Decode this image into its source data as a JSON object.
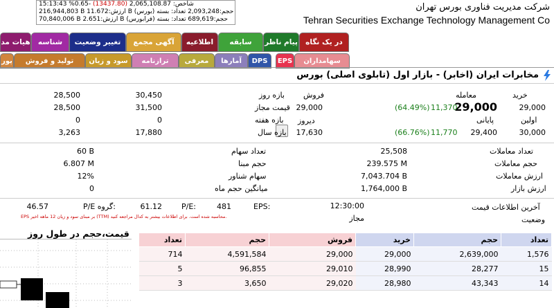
{
  "header": {
    "company_fa": "شرکت مدیریت فناوری بورس تهران",
    "company_en": "Tehran Securities Exchange Technology Management Co",
    "index": {
      "line1_time": "15:13:43",
      "line1_change": "%0.65-",
      "line1_paren": "(13437.80)",
      "line1_rest": "2,065,108.87 :شاخص",
      "line2": "216,944,803 B ارزش:11.672 B حجم:2,093,248 تعداد: بسته (بورس)",
      "line3": "70,840,006 B ارزش:2.651 B حجم:689,619 تعداد: بسته (فرابورس)"
    }
  },
  "tabs": {
    "row1": [
      {
        "label": "در یک نگاه",
        "color": "#b02121"
      },
      {
        "label": "پیام ناظر",
        "color": "#1f7a2a"
      },
      {
        "label": "سابقه",
        "color": "#3fa33a"
      },
      {
        "label": "اطلاعیه",
        "color": "#8a1c2c"
      },
      {
        "label": "آگهی مجمع",
        "color": "#d9a437"
      },
      {
        "label": "تغییر وضعیت",
        "color": "#1d2e8a"
      },
      {
        "label": "شناسه",
        "color": "#a12aa3"
      },
      {
        "label": "هیات مد",
        "color": "#8e1c6e"
      }
    ],
    "row2": [
      {
        "label": "سهامداران",
        "color": "#e78c92"
      },
      {
        "label": "EPS",
        "color": "#e7334f"
      },
      {
        "label": "DPS",
        "color": "#3055a8"
      },
      {
        "label": "آمارها",
        "color": "#8c7fbb"
      },
      {
        "label": "معرفی",
        "color": "#b8a93c"
      },
      {
        "label": "ترازنامه",
        "color": "#cf7fb3"
      },
      {
        "label": "سود و زیان",
        "color": "#c79a2b"
      },
      {
        "label": "تولید و فروش",
        "color": "#c57b2d"
      },
      {
        "label": "پور",
        "color": "#d1853d"
      }
    ]
  },
  "title": "مخابرات ایران (اخابر) - بازار اول (تابلوی اصلی) بورس",
  "prices": {
    "buy_label": "خرید",
    "buy_value": "29,000",
    "trade_label": "معامله",
    "trade_value": "29,000",
    "trade_change": "11,370",
    "trade_pct": "(64.49%)",
    "sell_label": "فروش",
    "sell_value": "29,000",
    "first_label": "اولین",
    "first_value": "30,000",
    "last_label": "پایانی",
    "last_value": "29,400",
    "last_change": "11,770",
    "last_pct": "(66.76%)",
    "yesterday_label": "دیروز",
    "yesterday_value": "17,630",
    "dayrange_label": "بازه روز",
    "dayrange_low": "28,500",
    "dayrange_high": "30,450",
    "allowed_label": "قیمت مجاز",
    "allowed_low": "28,500",
    "allowed_high": "31,500",
    "week_label": "بازه هفته",
    "week_low": "0",
    "week_high": "0",
    "year_label": "بازه سال",
    "year_low": "3,263",
    "year_high": "17,880"
  },
  "stats": {
    "trades_count_label": "تعداد معاملات",
    "trades_count": "25,508",
    "volume_label": "حجم معاملات",
    "volume": "239.575 M",
    "value_label": "ارزش معاملات",
    "value": "7,043.704 B",
    "market_label": "ارزش بازار",
    "market": "1,764,000 B",
    "shares_label": "تعداد سهام",
    "shares": "60 B",
    "base_label": "حجم مبنا",
    "base": "6.807 M",
    "float_label": "سهام شناور",
    "float": "12%",
    "avgvol_label": "میانگین حجم ماه",
    "avgvol": "0"
  },
  "info": {
    "lastinfo_label": "آخرین اطلاعات قیمت",
    "lastinfo": "12:30:00",
    "status_label": "وضعیت",
    "status": "مجاز",
    "eps_label": "EPS:",
    "eps": "481",
    "pe_label": "P/E:",
    "pe": "61.12",
    "gpe_label": "P/E گروه:",
    "gpe": "46.57",
    "eps_note": "EPS بر مبنای سود و زیان 12 ماهه اخیر (TTM) محاسبه شده است. برای اطلاعات بیشتر به کدال مراجعه کنید."
  },
  "chart_title": "قیمت،حجم در طول روز",
  "orderbook": {
    "headers": {
      "buy_count": "تعداد",
      "buy_vol": "حجم",
      "buy_price": "خرید",
      "sell_price": "فروش",
      "sell_vol": "حجم",
      "sell_count": "تعداد"
    },
    "rows": [
      {
        "buy_count": "1,576",
        "buy_vol": "2,639,000",
        "buy_price": "29,000",
        "sell_price": "29,000",
        "sell_vol": "4,591,584",
        "sell_count": "714"
      },
      {
        "buy_count": "15",
        "buy_vol": "28,277",
        "buy_price": "28,990",
        "sell_price": "29,010",
        "sell_vol": "96,855",
        "sell_count": "5"
      },
      {
        "buy_count": "14",
        "buy_vol": "43,343",
        "buy_price": "28,980",
        "sell_price": "29,020",
        "sell_vol": "3,650",
        "sell_count": "3"
      }
    ]
  }
}
